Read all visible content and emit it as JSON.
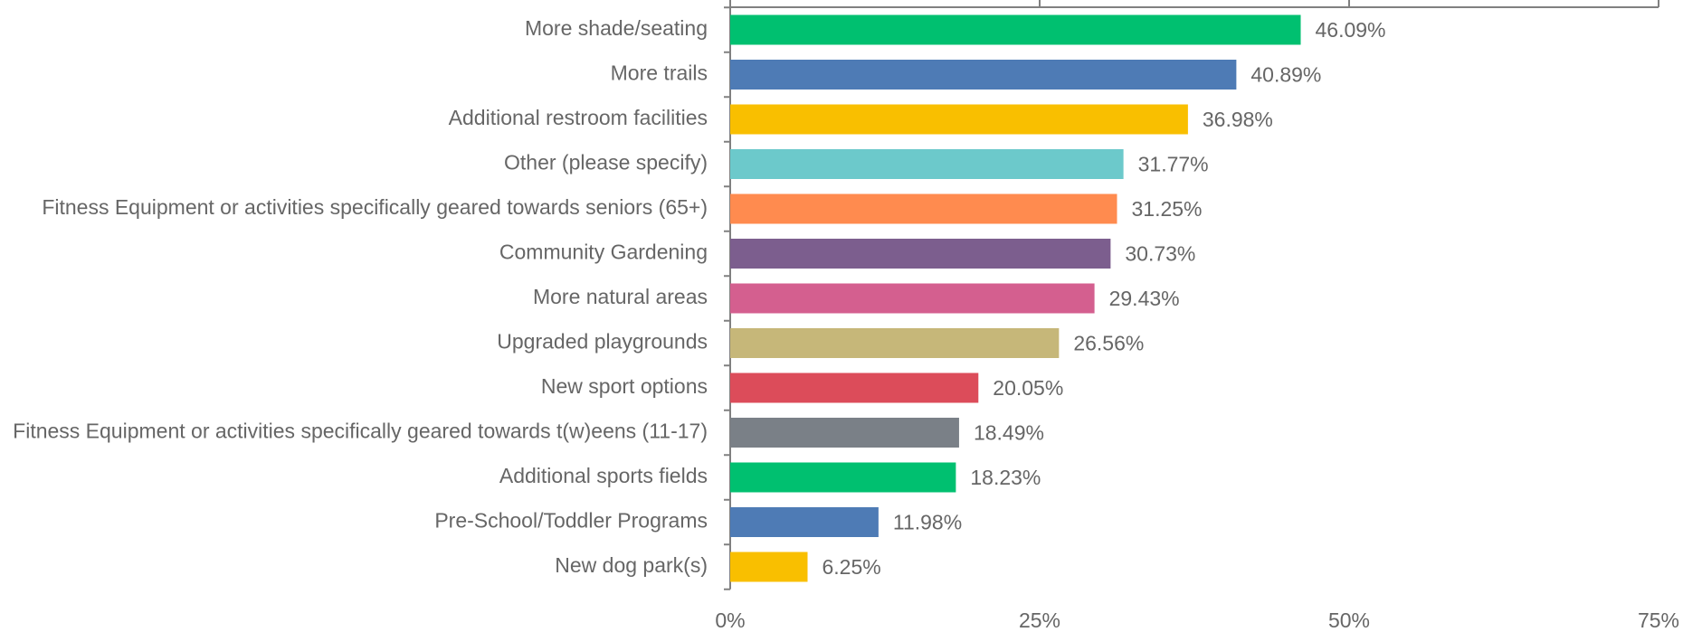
{
  "chart_data": {
    "type": "bar",
    "orientation": "horizontal",
    "categories": [
      "More shade/seating",
      "More trails",
      "Additional restroom facilities",
      "Other (please specify)",
      "Fitness Equipment or activities specifically geared towards seniors (65+)",
      "Community Gardening",
      "More natural areas",
      "Upgraded playgrounds",
      "New sport options",
      "Fitness Equipment or activities specifically geared towards t(w)eens (11-17)",
      "Additional sports fields",
      "Pre-School/Toddler Programs",
      "New dog park(s)"
    ],
    "values": [
      46.09,
      40.89,
      36.98,
      31.77,
      31.25,
      30.73,
      29.43,
      26.56,
      20.05,
      18.49,
      18.23,
      11.98,
      6.25
    ],
    "value_labels": [
      "46.09%",
      "40.89%",
      "36.98%",
      "31.77%",
      "31.25%",
      "30.73%",
      "29.43%",
      "26.56%",
      "20.05%",
      "18.49%",
      "18.23%",
      "11.98%",
      "6.25%"
    ],
    "colors": [
      "#00c070",
      "#4e7bb5",
      "#f9bf00",
      "#6cc9cb",
      "#ff8b4f",
      "#7c5e8e",
      "#d45f8f",
      "#c6b779",
      "#dc4c5a",
      "#7a8087",
      "#00c070",
      "#4e7bb5",
      "#f9bf00"
    ],
    "xlim": [
      0,
      75
    ],
    "xticks": [
      {
        "value": 0,
        "label": "0%"
      },
      {
        "value": 25,
        "label": "25%"
      },
      {
        "value": 50,
        "label": "50%"
      },
      {
        "value": 75,
        "label": "75%"
      }
    ]
  }
}
